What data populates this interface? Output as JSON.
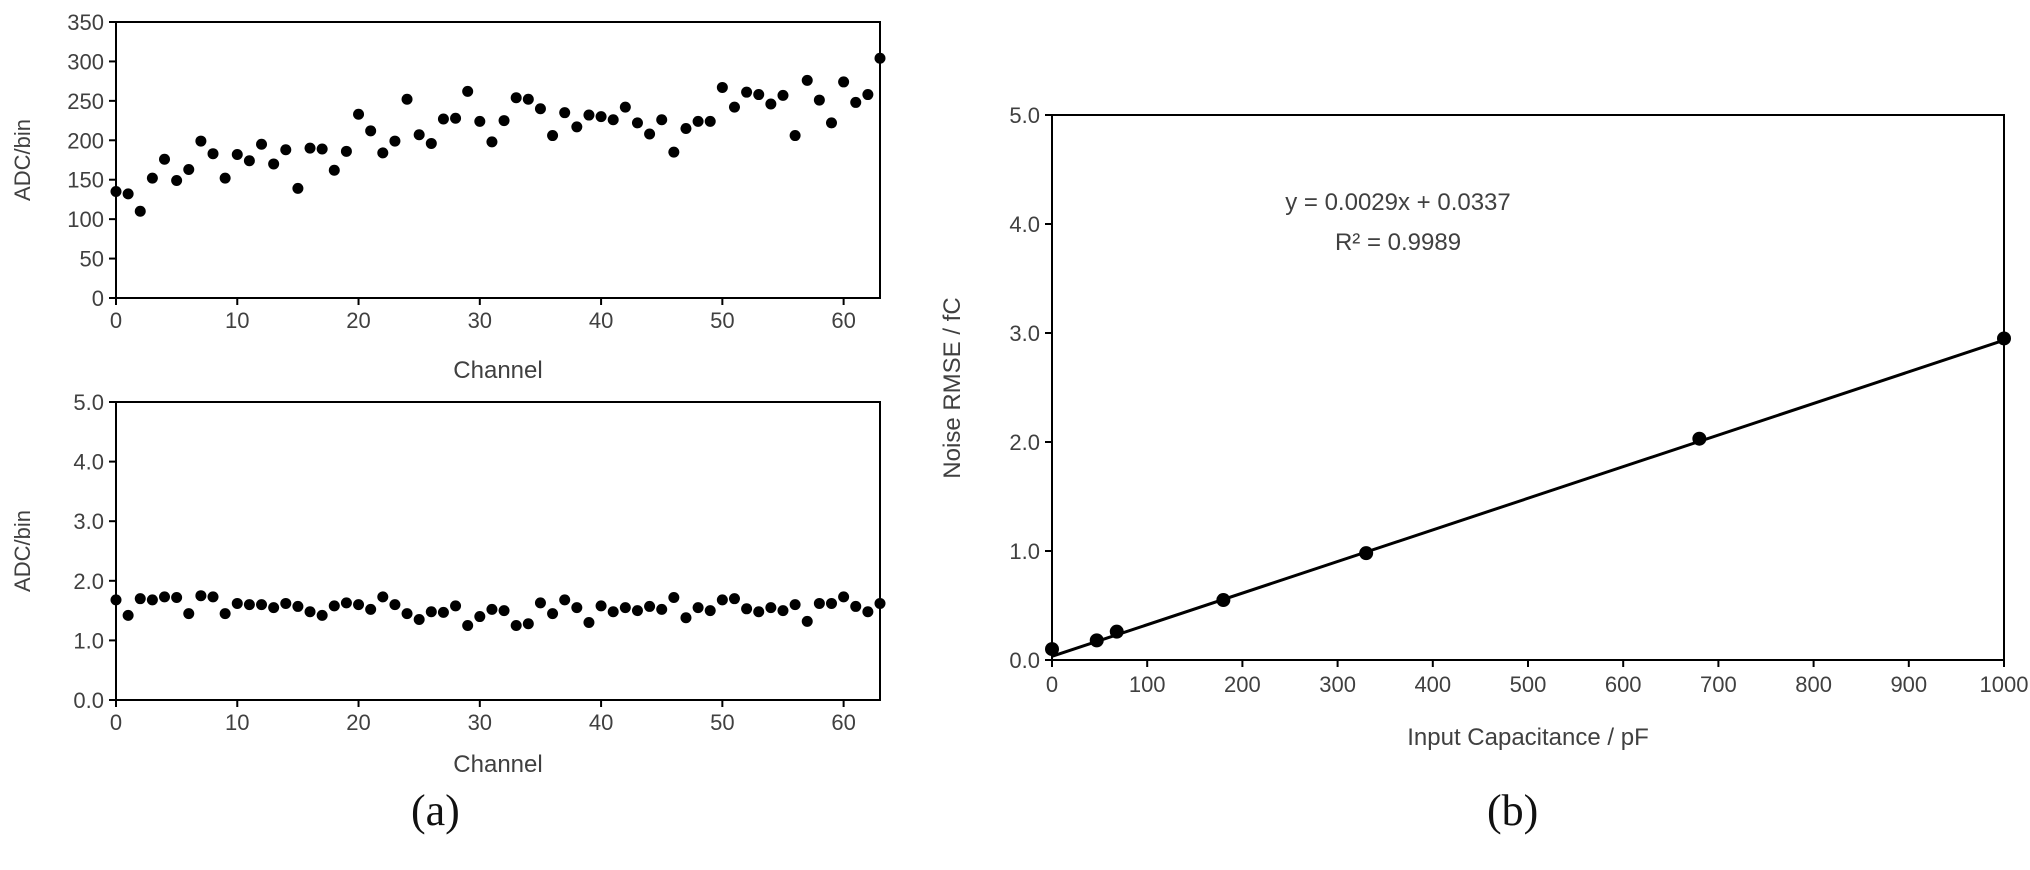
{
  "panels": [
    {
      "label": "(a)"
    },
    {
      "label": "(b)"
    }
  ],
  "chart_data": [
    {
      "type": "scatter",
      "xlabel": "Channel",
      "ylabel": "ADC/bin",
      "xlim": [
        0,
        63
      ],
      "ylim": [
        0,
        350
      ],
      "xticks": [
        0,
        10,
        20,
        30,
        40,
        50,
        60
      ],
      "yticks": [
        0,
        50,
        100,
        150,
        200,
        250,
        300,
        350
      ],
      "ytick_decimals": 0,
      "grid": false,
      "x": [
        0,
        1,
        2,
        3,
        4,
        5,
        6,
        7,
        8,
        9,
        10,
        11,
        12,
        13,
        14,
        15,
        16,
        17,
        18,
        19,
        20,
        21,
        22,
        23,
        24,
        25,
        26,
        27,
        28,
        29,
        30,
        31,
        32,
        33,
        34,
        35,
        36,
        37,
        38,
        39,
        40,
        41,
        42,
        43,
        44,
        45,
        46,
        47,
        48,
        49,
        50,
        51,
        52,
        53,
        54,
        55,
        56,
        57,
        58,
        59,
        60,
        61,
        62,
        63
      ],
      "y": [
        135,
        132,
        110,
        152,
        176,
        149,
        163,
        199,
        183,
        152,
        182,
        174,
        195,
        170,
        188,
        139,
        190,
        189,
        162,
        186,
        233,
        212,
        184,
        199,
        252,
        207,
        196,
        227,
        228,
        262,
        224,
        198,
        225,
        254,
        252,
        240,
        206,
        235,
        217,
        232,
        230,
        226,
        242,
        222,
        208,
        226,
        185,
        215,
        224,
        224,
        267,
        242,
        261,
        258,
        246,
        257,
        206,
        276,
        251,
        222,
        274,
        248,
        258,
        304
      ]
    },
    {
      "type": "scatter",
      "xlabel": "Channel",
      "ylabel": "ADC/bin",
      "xlim": [
        0,
        63
      ],
      "ylim": [
        0,
        5
      ],
      "xticks": [
        0,
        10,
        20,
        30,
        40,
        50,
        60
      ],
      "yticks": [
        0,
        1,
        2,
        3,
        4,
        5
      ],
      "ytick_decimals": 1,
      "grid": false,
      "x": [
        0,
        1,
        2,
        3,
        4,
        5,
        6,
        7,
        8,
        9,
        10,
        11,
        12,
        13,
        14,
        15,
        16,
        17,
        18,
        19,
        20,
        21,
        22,
        23,
        24,
        25,
        26,
        27,
        28,
        29,
        30,
        31,
        32,
        33,
        34,
        35,
        36,
        37,
        38,
        39,
        40,
        41,
        42,
        43,
        44,
        45,
        46,
        47,
        48,
        49,
        50,
        51,
        52,
        53,
        54,
        55,
        56,
        57,
        58,
        59,
        60,
        61,
        62,
        63
      ],
      "y": [
        1.68,
        1.42,
        1.7,
        1.68,
        1.73,
        1.72,
        1.45,
        1.75,
        1.73,
        1.45,
        1.62,
        1.6,
        1.6,
        1.55,
        1.62,
        1.57,
        1.48,
        1.42,
        1.58,
        1.63,
        1.6,
        1.52,
        1.73,
        1.6,
        1.45,
        1.35,
        1.48,
        1.47,
        1.58,
        1.25,
        1.4,
        1.52,
        1.5,
        1.25,
        1.28,
        1.63,
        1.45,
        1.68,
        1.55,
        1.3,
        1.58,
        1.48,
        1.55,
        1.5,
        1.57,
        1.52,
        1.72,
        1.38,
        1.55,
        1.5,
        1.68,
        1.7,
        1.53,
        1.48,
        1.55,
        1.5,
        1.6,
        1.32,
        1.62,
        1.62,
        1.73,
        1.57,
        1.48,
        1.62
      ]
    },
    {
      "type": "scatter",
      "xlabel": "Input Capacitance / pF",
      "ylabel": "Noise RMSE / fC",
      "xlim": [
        0,
        1000
      ],
      "ylim": [
        0,
        5
      ],
      "xticks": [
        0,
        100,
        200,
        300,
        400,
        500,
        600,
        700,
        800,
        900,
        1000
      ],
      "yticks": [
        0,
        1,
        2,
        3,
        4,
        5
      ],
      "ytick_decimals": 1,
      "grid": false,
      "x": [
        0,
        47,
        68,
        180,
        330,
        680,
        1000
      ],
      "y": [
        0.1,
        0.18,
        0.26,
        0.55,
        0.98,
        2.03,
        2.95
      ],
      "trendline": {
        "slope": 0.0029,
        "intercept": 0.0337,
        "x_range": [
          0,
          1000
        ]
      },
      "annotation": {
        "equation": "y = 0.0029x + 0.0337",
        "r_squared": "R² = 0.9989"
      }
    }
  ]
}
